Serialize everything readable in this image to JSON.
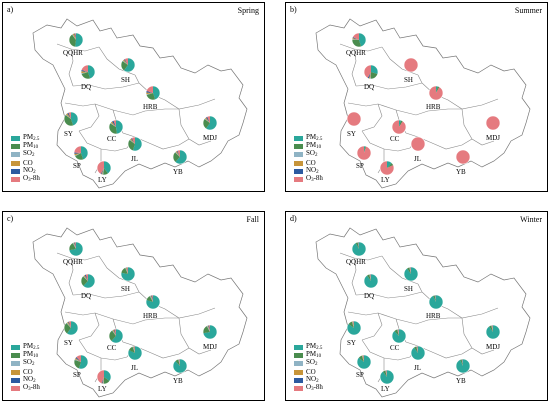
{
  "panels": [
    {
      "letter": "a)",
      "season": "Spring"
    },
    {
      "letter": "b)",
      "season": "Summer"
    },
    {
      "letter": "c)",
      "season": "Fall"
    },
    {
      "letter": "d)",
      "season": "Winter"
    }
  ],
  "legend": [
    {
      "label": "PM",
      "sub": "2.5",
      "color": "#2aa79b"
    },
    {
      "label": "PM",
      "sub": "10",
      "color": "#4a8c4e"
    },
    {
      "label": "SO",
      "sub": "2",
      "color": "#8fb3c4"
    },
    {
      "label": "CO",
      "sub": "",
      "color": "#c7953a"
    },
    {
      "label": "NO",
      "sub": "2",
      "color": "#2c5aa0"
    },
    {
      "label": "O",
      "sub": "3",
      "suffix": "-8h",
      "color": "#e57a7f"
    }
  ],
  "cities": [
    "QQHR",
    "DQ",
    "SH",
    "HRB",
    "SY",
    "CC",
    "MDJ",
    "SP",
    "JL",
    "YB",
    "LY"
  ],
  "shares": {
    "Spring": {
      "QQHR": [
        0.52,
        0.38,
        0.02,
        0.04,
        0.02,
        0.02
      ],
      "DQ": [
        0.45,
        0.25,
        0.02,
        0.05,
        0.03,
        0.2
      ],
      "SH": [
        0.6,
        0.25,
        0.02,
        0.03,
        0.02,
        0.08
      ],
      "HRB": [
        0.45,
        0.25,
        0.02,
        0.04,
        0.04,
        0.2
      ],
      "SY": [
        0.45,
        0.4,
        0.02,
        0.04,
        0.03,
        0.06
      ],
      "CC": [
        0.48,
        0.36,
        0.02,
        0.04,
        0.04,
        0.06
      ],
      "MDJ": [
        0.6,
        0.25,
        0.02,
        0.03,
        0.03,
        0.07
      ],
      "SP": [
        0.45,
        0.22,
        0.02,
        0.04,
        0.03,
        0.24
      ],
      "JL": [
        0.55,
        0.3,
        0.02,
        0.03,
        0.02,
        0.08
      ],
      "YB": [
        0.62,
        0.25,
        0.02,
        0.03,
        0.02,
        0.06
      ],
      "LY": [
        0.4,
        0.12,
        0.02,
        0.02,
        0.02,
        0.42
      ]
    },
    "Summer": {
      "QQHR": [
        0.45,
        0.3,
        0.02,
        0.03,
        0.02,
        0.18
      ],
      "DQ": [
        0.3,
        0.2,
        0.02,
        0.03,
        0.03,
        0.42
      ],
      "SH": [
        0.0,
        0.0,
        0.0,
        0.0,
        0.0,
        1.0
      ],
      "HRB": [
        0.04,
        0.04,
        0.0,
        0.0,
        0.0,
        0.92
      ],
      "SY": [
        0.0,
        0.0,
        0.0,
        0.0,
        0.0,
        1.0
      ],
      "CC": [
        0.05,
        0.04,
        0.0,
        0.0,
        0.0,
        0.91
      ],
      "MDJ": [
        0.0,
        0.0,
        0.0,
        0.0,
        0.0,
        1.0
      ],
      "SP": [
        0.03,
        0.02,
        0.0,
        0.0,
        0.0,
        0.95
      ],
      "JL": [
        0.0,
        0.0,
        0.0,
        0.0,
        0.0,
        1.0
      ],
      "YB": [
        0.0,
        0.0,
        0.0,
        0.0,
        0.0,
        1.0
      ],
      "LY": [
        0.12,
        0.06,
        0.0,
        0.0,
        0.0,
        0.82
      ]
    },
    "Fall": {
      "QQHR": [
        0.72,
        0.2,
        0.02,
        0.02,
        0.02,
        0.02
      ],
      "DQ": [
        0.62,
        0.25,
        0.02,
        0.03,
        0.03,
        0.05
      ],
      "SH": [
        0.78,
        0.15,
        0.02,
        0.02,
        0.01,
        0.02
      ],
      "HRB": [
        0.8,
        0.12,
        0.02,
        0.02,
        0.02,
        0.02
      ],
      "SY": [
        0.6,
        0.28,
        0.02,
        0.03,
        0.02,
        0.05
      ],
      "CC": [
        0.62,
        0.28,
        0.02,
        0.03,
        0.02,
        0.03
      ],
      "MDJ": [
        0.72,
        0.2,
        0.02,
        0.02,
        0.02,
        0.02
      ],
      "SP": [
        0.55,
        0.25,
        0.02,
        0.03,
        0.03,
        0.12
      ],
      "JL": [
        0.82,
        0.12,
        0.02,
        0.02,
        0.01,
        0.01
      ],
      "YB": [
        0.88,
        0.08,
        0.01,
        0.01,
        0.01,
        0.01
      ],
      "LY": [
        0.35,
        0.15,
        0.02,
        0.02,
        0.02,
        0.44
      ]
    },
    "Winter": {
      "QQHR": [
        0.92,
        0.05,
        0.01,
        0.01,
        0.01,
        0.0
      ],
      "DQ": [
        0.9,
        0.06,
        0.01,
        0.01,
        0.01,
        0.01
      ],
      "SH": [
        0.9,
        0.06,
        0.01,
        0.01,
        0.01,
        0.01
      ],
      "HRB": [
        0.93,
        0.04,
        0.01,
        0.01,
        0.01,
        0.0
      ],
      "SY": [
        0.85,
        0.1,
        0.01,
        0.02,
        0.01,
        0.01
      ],
      "CC": [
        0.88,
        0.08,
        0.01,
        0.01,
        0.01,
        0.01
      ],
      "MDJ": [
        0.9,
        0.06,
        0.01,
        0.01,
        0.01,
        0.01
      ],
      "SP": [
        0.86,
        0.09,
        0.01,
        0.02,
        0.01,
        0.01
      ],
      "JL": [
        0.9,
        0.06,
        0.01,
        0.01,
        0.01,
        0.01
      ],
      "YB": [
        0.93,
        0.04,
        0.01,
        0.01,
        0.01,
        0.0
      ],
      "LY": [
        0.9,
        0.06,
        0.01,
        0.01,
        0.01,
        0.01
      ]
    }
  }
}
